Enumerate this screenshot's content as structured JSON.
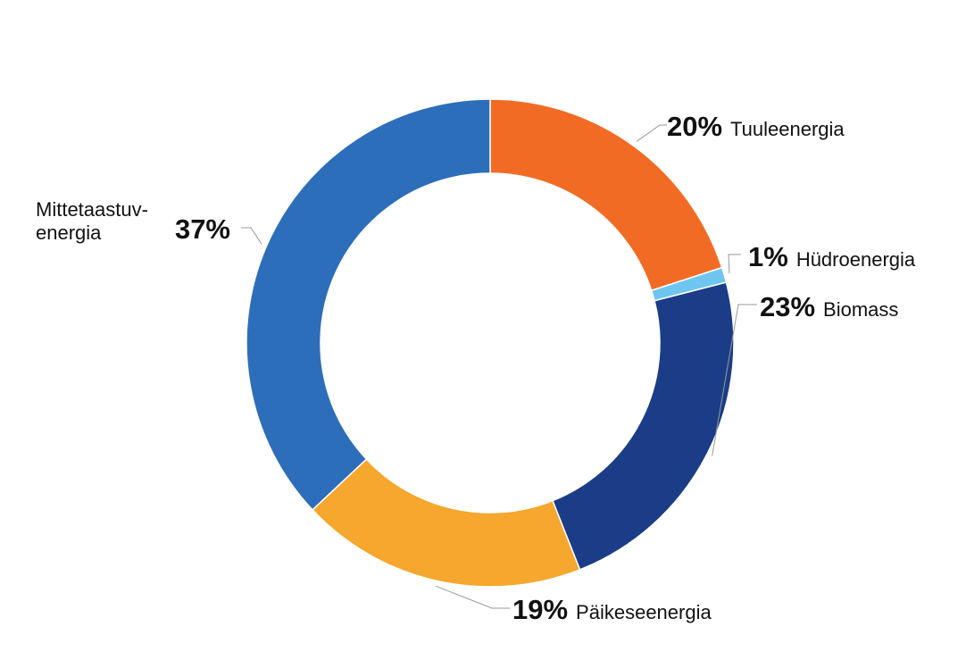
{
  "chart_data": {
    "type": "pie",
    "donut": true,
    "slices": [
      {
        "name": "Tuuleenergia",
        "label_lines": [
          "Tuuleenergia"
        ],
        "value": 20,
        "value_label": "20%",
        "color": "#F26B24"
      },
      {
        "name": "Hüdroenergia",
        "label_lines": [
          "Hüdroenergia"
        ],
        "value": 1,
        "value_label": "1%",
        "color": "#6EC6F0"
      },
      {
        "name": "Biomass",
        "label_lines": [
          "Biomass"
        ],
        "value": 23,
        "value_label": "23%",
        "color": "#1B3C87"
      },
      {
        "name": "Päikeseenergia",
        "label_lines": [
          "Päikeseenergia"
        ],
        "value": 19,
        "value_label": "19%",
        "color": "#F6A72D"
      },
      {
        "name": "Mittetaastuv-energia",
        "label_lines": [
          "Mittetaastuv-",
          "energia"
        ],
        "value": 37,
        "value_label": "37%",
        "color": "#2D6EBB"
      }
    ],
    "start": "12 o'clock",
    "direction": "clockwise",
    "legend": "none (labels beside slices)"
  }
}
